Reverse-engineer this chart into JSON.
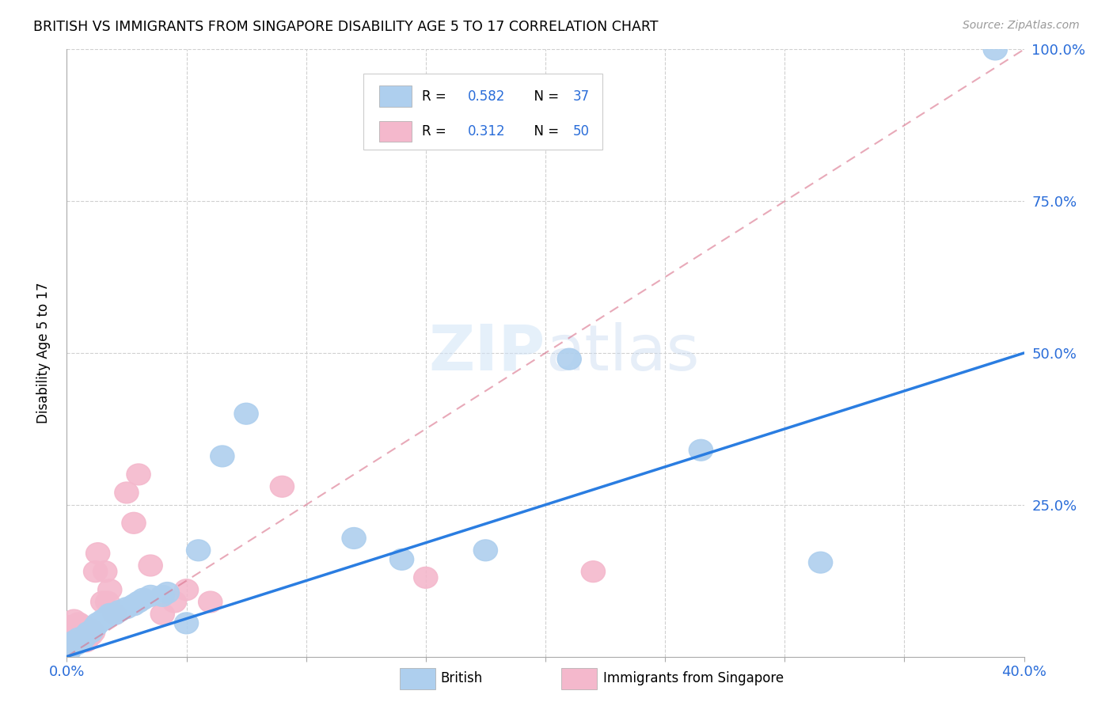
{
  "title": "BRITISH VS IMMIGRANTS FROM SINGAPORE DISABILITY AGE 5 TO 17 CORRELATION CHART",
  "source": "Source: ZipAtlas.com",
  "ylabel": "Disability Age 5 to 17",
  "xmin": 0.0,
  "xmax": 0.4,
  "ymin": 0.0,
  "ymax": 1.0,
  "british_R": 0.582,
  "british_N": 37,
  "singapore_R": 0.312,
  "singapore_N": 50,
  "british_color": "#aecfee",
  "british_line_color": "#2a7de1",
  "singapore_color": "#f4b8cc",
  "singapore_line_color": "#d9708a",
  "watermark": "ZIPatlas",
  "british_x": [
    0.001,
    0.002,
    0.003,
    0.003,
    0.004,
    0.005,
    0.005,
    0.006,
    0.007,
    0.008,
    0.009,
    0.01,
    0.012,
    0.013,
    0.015,
    0.017,
    0.018,
    0.02,
    0.022,
    0.025,
    0.028,
    0.03,
    0.032,
    0.035,
    0.04,
    0.042,
    0.05,
    0.055,
    0.065,
    0.075,
    0.12,
    0.14,
    0.175,
    0.21,
    0.265,
    0.315,
    0.388
  ],
  "british_y": [
    0.01,
    0.02,
    0.02,
    0.025,
    0.02,
    0.025,
    0.03,
    0.025,
    0.03,
    0.035,
    0.04,
    0.04,
    0.05,
    0.055,
    0.06,
    0.065,
    0.07,
    0.07,
    0.075,
    0.08,
    0.085,
    0.09,
    0.095,
    0.1,
    0.1,
    0.105,
    0.055,
    0.175,
    0.33,
    0.4,
    0.195,
    0.16,
    0.175,
    0.49,
    0.34,
    0.155,
    1.0
  ],
  "singapore_x": [
    0.001,
    0.001,
    0.001,
    0.002,
    0.002,
    0.002,
    0.003,
    0.003,
    0.003,
    0.003,
    0.003,
    0.004,
    0.004,
    0.004,
    0.005,
    0.005,
    0.005,
    0.005,
    0.006,
    0.006,
    0.006,
    0.007,
    0.007,
    0.007,
    0.008,
    0.008,
    0.008,
    0.009,
    0.009,
    0.01,
    0.01,
    0.011,
    0.012,
    0.013,
    0.015,
    0.016,
    0.017,
    0.018,
    0.02,
    0.025,
    0.028,
    0.03,
    0.035,
    0.04,
    0.045,
    0.05,
    0.06,
    0.09,
    0.15,
    0.22
  ],
  "singapore_y": [
    0.03,
    0.04,
    0.05,
    0.03,
    0.04,
    0.05,
    0.025,
    0.03,
    0.04,
    0.05,
    0.06,
    0.025,
    0.035,
    0.045,
    0.025,
    0.035,
    0.045,
    0.055,
    0.03,
    0.04,
    0.05,
    0.03,
    0.04,
    0.05,
    0.025,
    0.035,
    0.045,
    0.035,
    0.045,
    0.035,
    0.045,
    0.04,
    0.14,
    0.17,
    0.09,
    0.14,
    0.09,
    0.11,
    0.07,
    0.27,
    0.22,
    0.3,
    0.15,
    0.07,
    0.09,
    0.11,
    0.09,
    0.28,
    0.13,
    0.14
  ],
  "blue_line_x0": 0.0,
  "blue_line_y0": 0.0,
  "blue_line_x1": 0.4,
  "blue_line_y1": 0.5,
  "pink_line_x0": 0.0,
  "pink_line_y0": 0.0,
  "pink_line_x1": 0.4,
  "pink_line_y1": 1.0
}
